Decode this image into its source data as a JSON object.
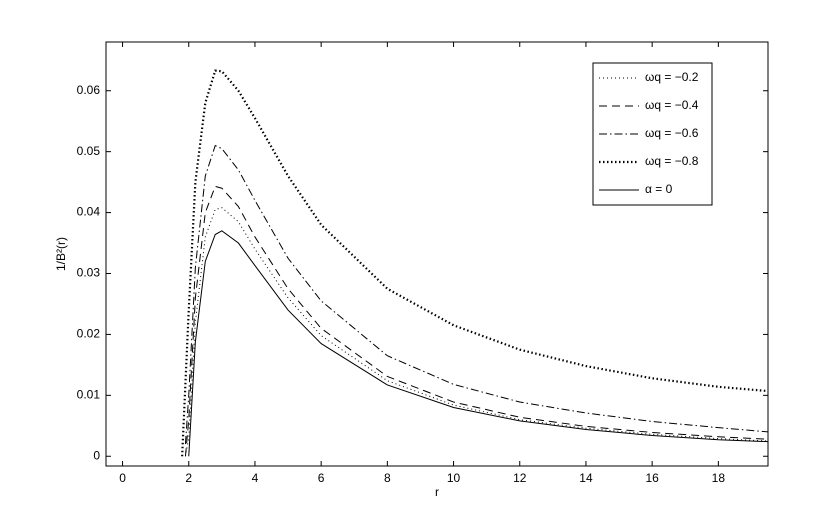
{
  "chart_data": {
    "type": "line",
    "xlabel": "r",
    "ylabel": "1/B²(r)",
    "x": [
      1.8,
      1.9,
      2,
      2.2,
      2.5,
      2.8,
      3,
      3.5,
      4,
      5,
      6,
      8,
      10,
      12,
      14,
      16,
      18,
      19.5
    ],
    "series": [
      {
        "name": "ωq = −0.2",
        "color": "#000000",
        "style": "dotted",
        "values": [
          null,
          0,
          0.003,
          0.022,
          0.036,
          0.0405,
          0.0408,
          0.0385,
          0.034,
          0.026,
          0.0198,
          0.0124,
          0.0084,
          0.006,
          0.0046,
          0.0036,
          0.0029,
          0.0025
        ]
      },
      {
        "name": "ωq = −0.4",
        "color": "#000000",
        "style": "dashed",
        "values": [
          null,
          0,
          0.006,
          0.026,
          0.04,
          0.0443,
          0.044,
          0.041,
          0.036,
          0.0275,
          0.021,
          0.0131,
          0.0089,
          0.0064,
          0.0049,
          0.0039,
          0.0032,
          0.0028
        ]
      },
      {
        "name": "ωq = −0.6",
        "color": "#000000",
        "style": "dashdot",
        "values": [
          null,
          0.002,
          0.01,
          0.031,
          0.046,
          0.051,
          0.0505,
          0.047,
          0.042,
          0.0325,
          0.0255,
          0.0165,
          0.0118,
          0.0089,
          0.0071,
          0.0057,
          0.0047,
          0.004
        ]
      },
      {
        "name": "ωq = −0.8",
        "color": "#000000",
        "style": "heavydotted",
        "values": [
          0,
          0.012,
          0.024,
          0.045,
          0.058,
          0.0633,
          0.0632,
          0.06,
          0.0555,
          0.046,
          0.038,
          0.0275,
          0.0215,
          0.0175,
          0.0148,
          0.0128,
          0.0114,
          0.0107
        ]
      },
      {
        "name": "α = 0",
        "color": "#000000",
        "style": "solid",
        "values": [
          null,
          null,
          0,
          0.0188,
          0.032,
          0.0364,
          0.037,
          0.035,
          0.0313,
          0.024,
          0.0185,
          0.0117,
          0.008,
          0.0058,
          0.0044,
          0.0034,
          0.0027,
          0.0024
        ]
      }
    ],
    "xlim": [
      -0.5,
      19.5
    ],
    "xticks": [
      0,
      2,
      4,
      6,
      8,
      10,
      12,
      14,
      16,
      18
    ],
    "ylim": [
      -0.0016,
      0.068
    ],
    "yticks": [
      0,
      0.01,
      0.02,
      0.03,
      0.04,
      0.05,
      0.06
    ],
    "legend": "upper right",
    "grid": false
  }
}
